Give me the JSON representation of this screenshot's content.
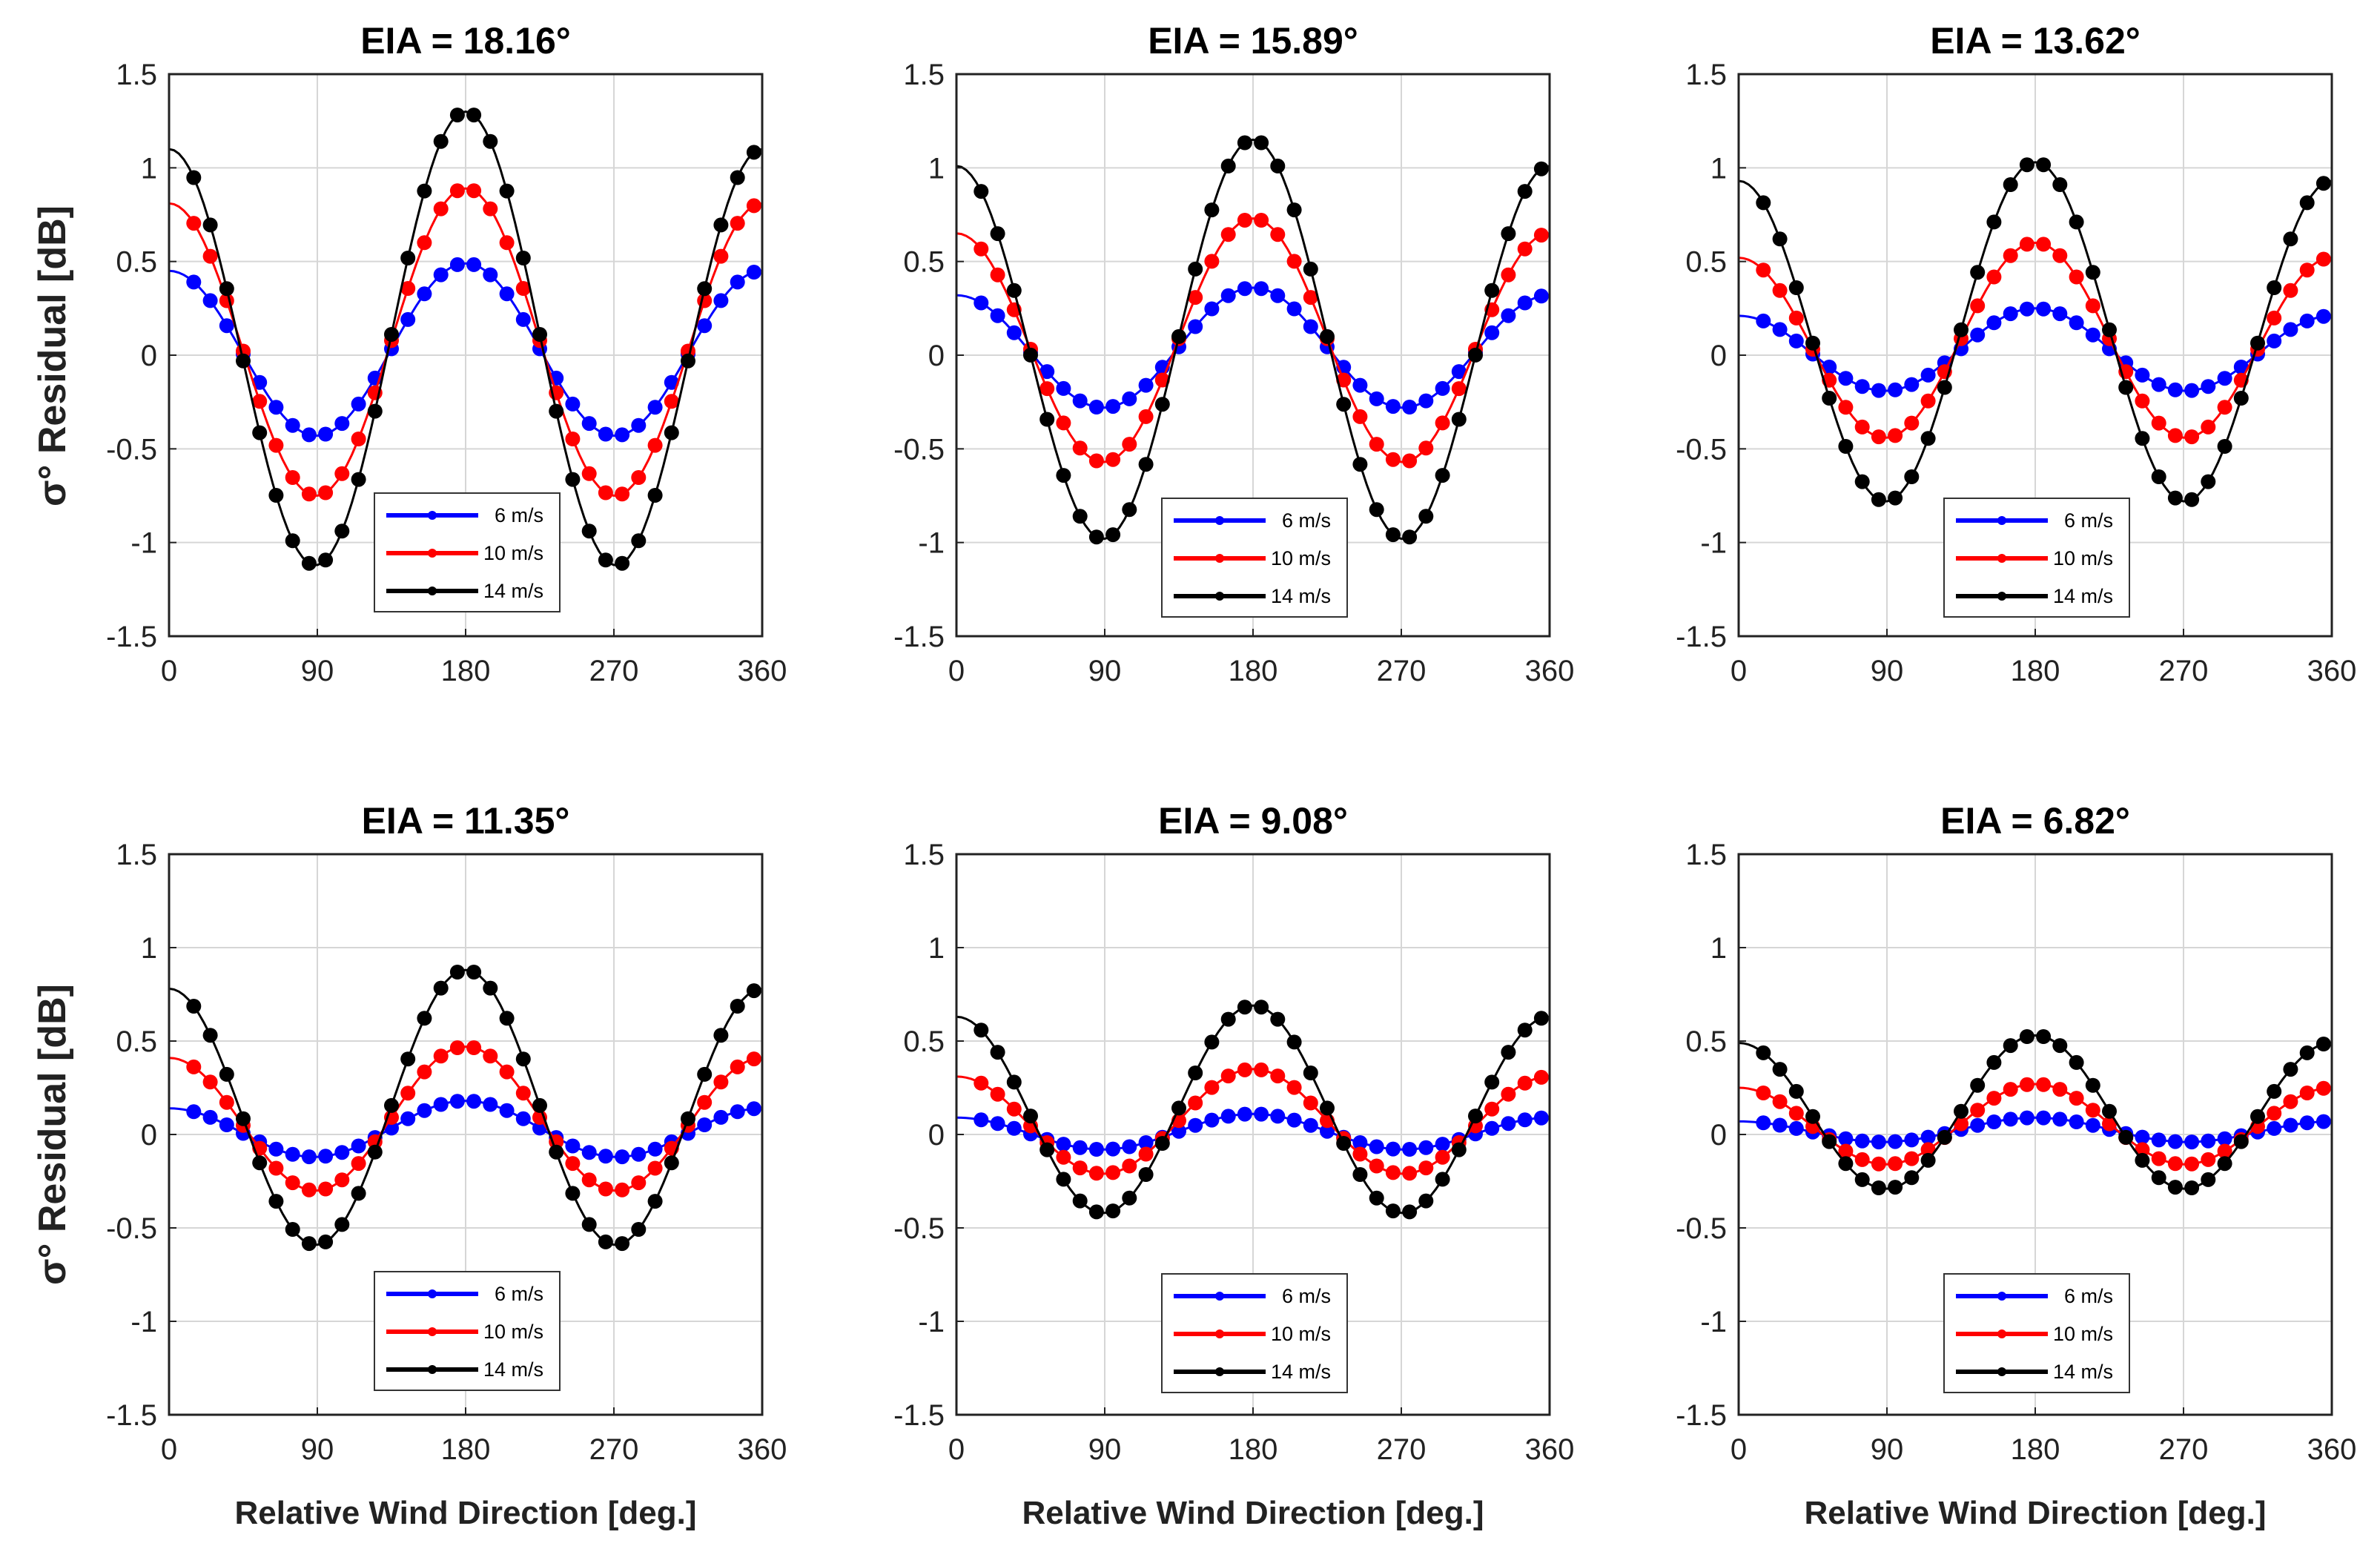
{
  "chart_data": {
    "type": "line",
    "figure_ylabel": "σ° Residual [dB]",
    "figure_xlabel": "Relative Wind Direction [deg.]",
    "x_tick_labels": [
      "0",
      "90",
      "180",
      "270",
      "360"
    ],
    "y_tick_labels": [
      "1.5",
      "1",
      "0.5",
      "0",
      "-0.5",
      "-1",
      "-1.5"
    ],
    "xlim": [
      0,
      360
    ],
    "ylim": [
      -1.5,
      1.5
    ],
    "grid": true,
    "legend_location": "bottom-center",
    "series_styles": [
      {
        "name": "6 m/s",
        "color": "#0000ff"
      },
      {
        "name": "10 m/s",
        "color": "#ff0000"
      },
      {
        "name": "14 m/s",
        "color": "#000000"
      }
    ],
    "panels": [
      {
        "title": "EIA = 18.16°",
        "legend": [
          "6 m/s",
          "10 m/s",
          "14 m/s"
        ],
        "series": [
          {
            "name": "6 m/s",
            "a0": 0.02,
            "a1": -0.02,
            "a2": 0.45
          },
          {
            "name": "10 m/s",
            "a0": 0.05,
            "a1": -0.04,
            "a2": 0.8
          },
          {
            "name": "14 m/s",
            "a0": 0.04,
            "a1": -0.1,
            "a2": 1.16
          }
        ]
      },
      {
        "title": "EIA = 15.89°",
        "legend": [
          "6 m/s",
          "10 m/s",
          "14 m/s"
        ],
        "series": [
          {
            "name": "6 m/s",
            "a0": 0.03,
            "a1": -0.02,
            "a2": 0.31
          },
          {
            "name": "10 m/s",
            "a0": 0.06,
            "a1": -0.04,
            "a2": 0.63
          },
          {
            "name": "14 m/s",
            "a0": 0.05,
            "a1": -0.07,
            "a2": 1.03
          }
        ]
      },
      {
        "title": "EIA = 13.62°",
        "legend": [
          "6 m/s",
          "10 m/s",
          "14 m/s"
        ],
        "series": [
          {
            "name": "6 m/s",
            "a0": 0.02,
            "a1": -0.02,
            "a2": 0.21
          },
          {
            "name": "10 m/s",
            "a0": 0.06,
            "a1": -0.04,
            "a2": 0.5
          },
          {
            "name": "14 m/s",
            "a0": 0.1,
            "a1": -0.05,
            "a2": 0.88
          }
        ]
      },
      {
        "title": "EIA = 11.35°",
        "legend": [
          "6 m/s",
          "10 m/s",
          "14 m/s"
        ],
        "series": [
          {
            "name": "6 m/s",
            "a0": 0.02,
            "a1": -0.02,
            "a2": 0.14
          },
          {
            "name": "10 m/s",
            "a0": 0.07,
            "a1": -0.03,
            "a2": 0.37
          },
          {
            "name": "14 m/s",
            "a0": 0.12,
            "a1": -0.05,
            "a2": 0.71
          }
        ]
      },
      {
        "title": "EIA = 9.08°",
        "legend": [
          "6 m/s",
          "10 m/s",
          "14 m/s"
        ],
        "series": [
          {
            "name": "6 m/s",
            "a0": 0.01,
            "a1": -0.01,
            "a2": 0.09
          },
          {
            "name": "10 m/s",
            "a0": 0.06,
            "a1": -0.02,
            "a2": 0.27
          },
          {
            "name": "14 m/s",
            "a0": 0.12,
            "a1": -0.03,
            "a2": 0.54
          }
        ]
      },
      {
        "title": "EIA = 6.82°",
        "legend": [
          "6 m/s",
          "10 m/s",
          "14 m/s"
        ],
        "series": [
          {
            "name": "6 m/s",
            "a0": 0.02,
            "a1": -0.01,
            "a2": 0.06
          },
          {
            "name": "10 m/s",
            "a0": 0.05,
            "a1": -0.01,
            "a2": 0.21
          },
          {
            "name": "14 m/s",
            "a0": 0.11,
            "a1": -0.02,
            "a2": 0.4
          }
        ]
      }
    ]
  }
}
